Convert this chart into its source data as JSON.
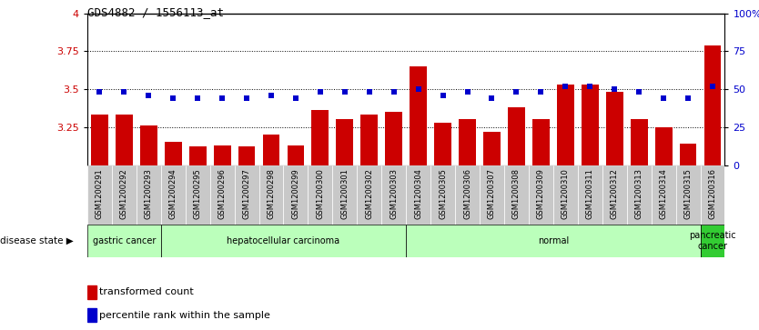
{
  "title": "GDS4882 / 1556113_at",
  "samples": [
    "GSM1200291",
    "GSM1200292",
    "GSM1200293",
    "GSM1200294",
    "GSM1200295",
    "GSM1200296",
    "GSM1200297",
    "GSM1200298",
    "GSM1200299",
    "GSM1200300",
    "GSM1200301",
    "GSM1200302",
    "GSM1200303",
    "GSM1200304",
    "GSM1200305",
    "GSM1200306",
    "GSM1200307",
    "GSM1200308",
    "GSM1200309",
    "GSM1200310",
    "GSM1200311",
    "GSM1200312",
    "GSM1200313",
    "GSM1200314",
    "GSM1200315",
    "GSM1200316"
  ],
  "transformed_count": [
    3.33,
    3.33,
    3.26,
    3.15,
    3.12,
    3.13,
    3.12,
    3.2,
    3.13,
    3.36,
    3.3,
    3.33,
    3.35,
    3.65,
    3.28,
    3.3,
    3.22,
    3.38,
    3.3,
    3.53,
    3.53,
    3.48,
    3.3,
    3.25,
    3.14,
    3.79
  ],
  "percentile_rank": [
    48,
    48,
    46,
    44,
    44,
    44,
    44,
    46,
    44,
    48,
    48,
    48,
    48,
    50,
    46,
    48,
    44,
    48,
    48,
    52,
    52,
    50,
    48,
    44,
    44,
    52
  ],
  "ylim": [
    3.0,
    4.0
  ],
  "y2lim": [
    0,
    100
  ],
  "yticks": [
    3.0,
    3.25,
    3.5,
    3.75,
    4.0
  ],
  "y2ticks": [
    0,
    25,
    50,
    75,
    100
  ],
  "bar_color": "#cc0000",
  "scatter_color": "#0000cc",
  "background_color": "#ffffff",
  "xticklabel_bg": "#c8c8c8",
  "disease_states": [
    {
      "label": "gastric cancer",
      "start": 0,
      "end": 3,
      "color": "#bbffbb"
    },
    {
      "label": "hepatocellular carcinoma",
      "start": 3,
      "end": 13,
      "color": "#bbffbb"
    },
    {
      "label": "normal",
      "start": 13,
      "end": 25,
      "color": "#bbffbb"
    },
    {
      "label": "pancreatic\ncancer",
      "start": 25,
      "end": 26,
      "color": "#33cc33"
    }
  ],
  "legend_bar_label": "transformed count",
  "legend_scatter_label": "percentile rank within the sample"
}
